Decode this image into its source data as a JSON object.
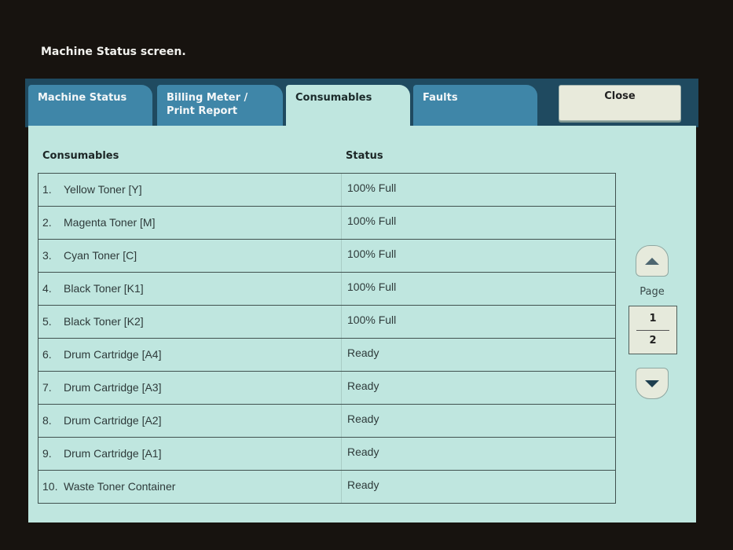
{
  "screen_title": "Machine Status screen.",
  "tabs": [
    {
      "label": "Machine Status"
    },
    {
      "label": "Billing Meter /",
      "label2": "Print Report"
    },
    {
      "label": "Consumables"
    },
    {
      "label": "Faults"
    }
  ],
  "active_tab": "Consumables",
  "close_label": "Close",
  "table": {
    "headers": {
      "name": "Consumables",
      "status": "Status"
    },
    "rows": [
      {
        "num": "1.",
        "name": "Yellow Toner [Y]",
        "status": "100% Full"
      },
      {
        "num": "2.",
        "name": "Magenta Toner [M]",
        "status": "100% Full"
      },
      {
        "num": "3.",
        "name": "Cyan Toner [C]",
        "status": "100% Full"
      },
      {
        "num": "4.",
        "name": "Black Toner [K1]",
        "status": "100% Full"
      },
      {
        "num": "5.",
        "name": "Black Toner [K2]",
        "status": "100% Full"
      },
      {
        "num": "6.",
        "name": "Drum Cartridge [A4]",
        "status": "Ready"
      },
      {
        "num": "7.",
        "name": "Drum Cartridge [A3]",
        "status": "Ready"
      },
      {
        "num": "8.",
        "name": "Drum Cartridge [A2]",
        "status": "Ready"
      },
      {
        "num": "9.",
        "name": "Drum Cartridge [A1]",
        "status": "Ready"
      },
      {
        "num": "10.",
        "name": "Waste Toner Container",
        "status": "Ready"
      }
    ]
  },
  "pager": {
    "label": "Page",
    "current": "1",
    "total": "2",
    "up_icon": "triangle-up-icon",
    "down_icon": "triangle-down-icon"
  }
}
